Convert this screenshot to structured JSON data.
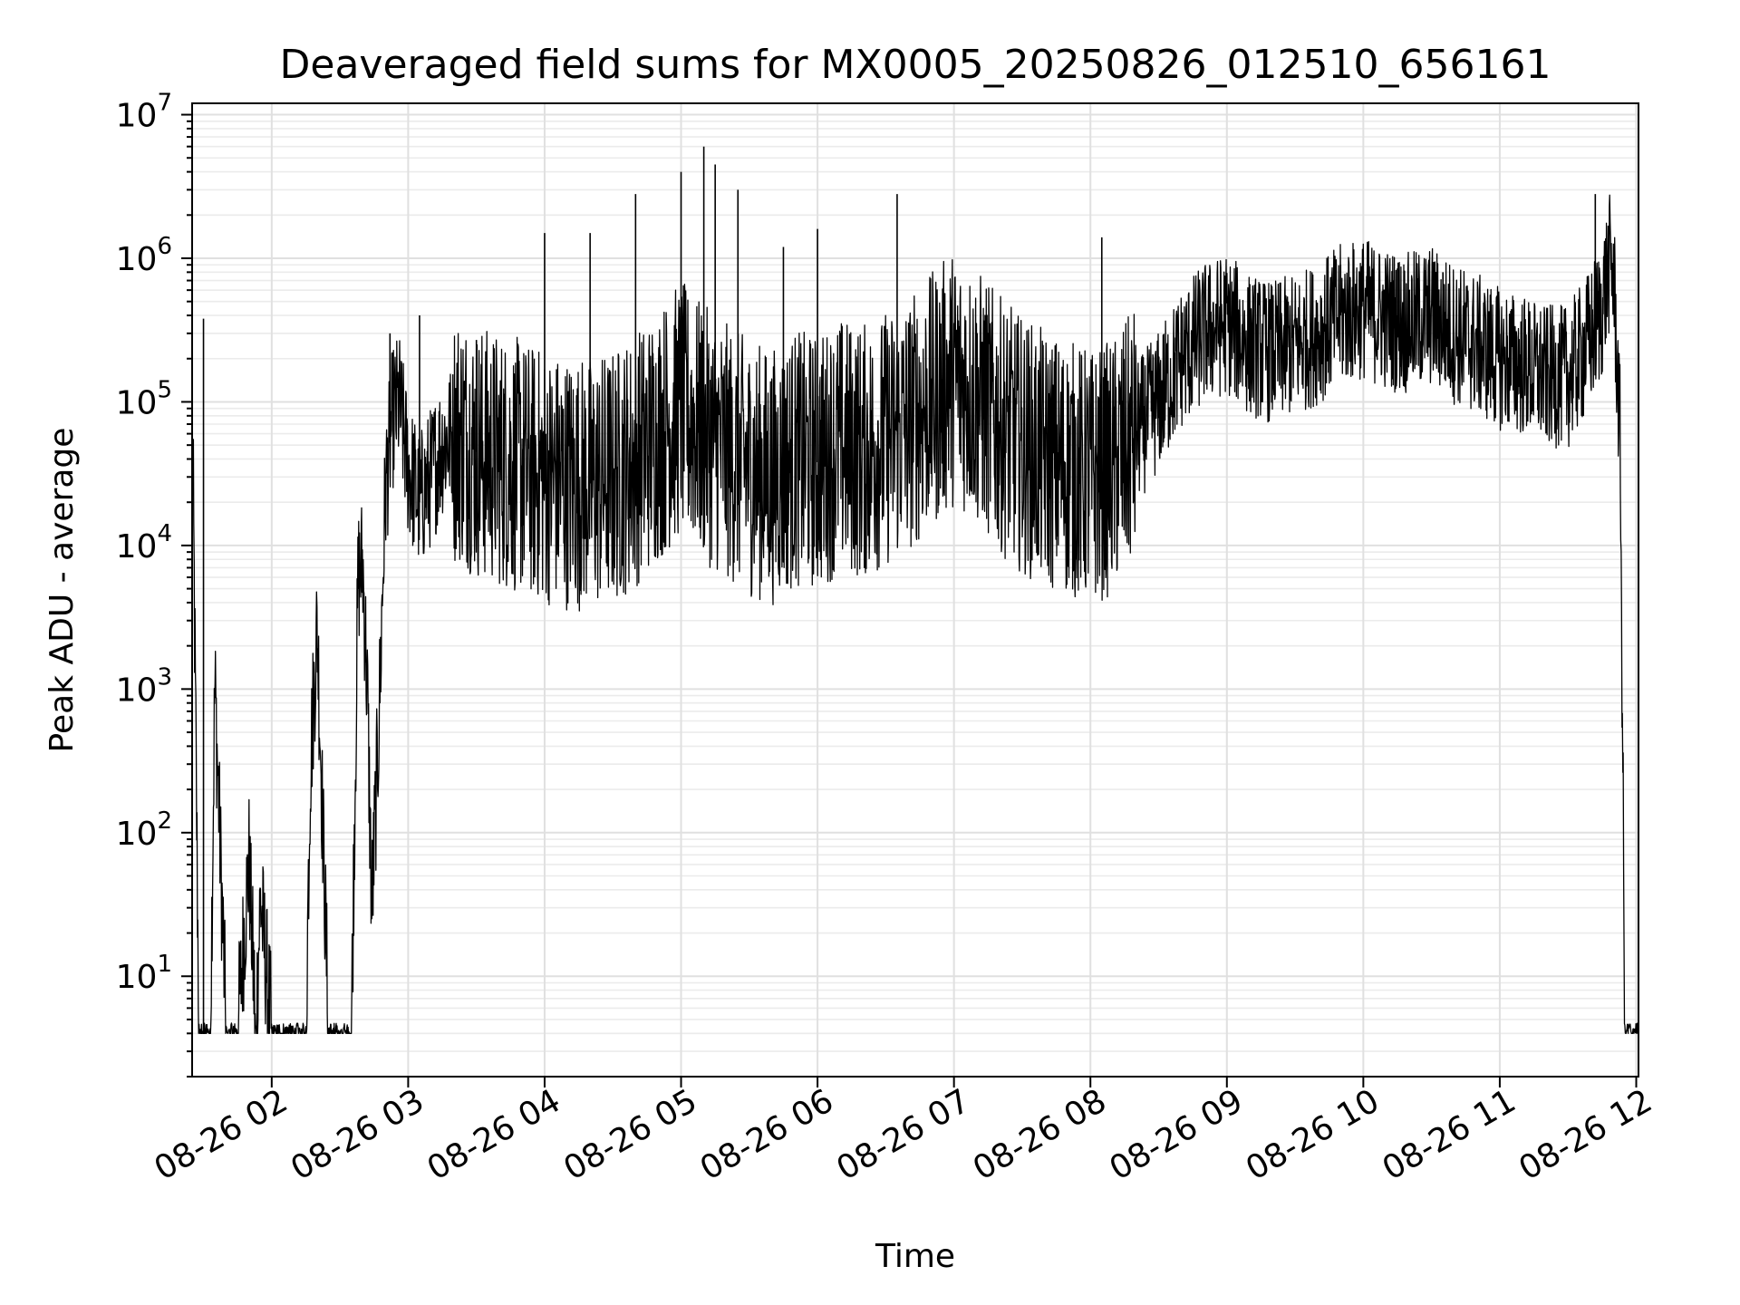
{
  "chart_data": {
    "type": "line",
    "title": "Deaveraged field sums for MX0005_20250826_012510_656161",
    "xlabel": "Time",
    "ylabel": "Peak ADU - average",
    "yscale": "log",
    "ylim": [
      2,
      12000000
    ],
    "xlim": [
      "08-26 01:25",
      "08-26 12:01"
    ],
    "grid": true,
    "line_color": "#000000",
    "x_ticks": [
      "08-26 02",
      "08-26 03",
      "08-26 04",
      "08-26 05",
      "08-26 06",
      "08-26 07",
      "08-26 08",
      "08-26 09",
      "08-26 10",
      "08-26 11",
      "08-26 12"
    ],
    "y_ticks": [
      {
        "base": "10",
        "exp": "1",
        "value": 10
      },
      {
        "base": "10",
        "exp": "2",
        "value": 100
      },
      {
        "base": "10",
        "exp": "3",
        "value": 1000
      },
      {
        "base": "10",
        "exp": "4",
        "value": 10000
      },
      {
        "base": "10",
        "exp": "5",
        "value": 100000
      },
      {
        "base": "10",
        "exp": "6",
        "value": 1000000
      },
      {
        "base": "10",
        "exp": "7",
        "value": 10000000
      }
    ],
    "series": [
      {
        "x": [
          "08-26 01:25",
          "08-26 01:28",
          "08-26 01:30",
          "08-26 01:33",
          "08-26 01:35",
          "08-26 01:40",
          "08-26 01:45",
          "08-26 01:50",
          "08-26 01:53",
          "08-26 01:55",
          "08-26 02:00",
          "08-26 02:05",
          "08-26 02:10",
          "08-26 02:15",
          "08-26 02:17",
          "08-26 02:20",
          "08-26 02:25",
          "08-26 02:30",
          "08-26 02:35",
          "08-26 02:38",
          "08-26 02:40",
          "08-26 02:42",
          "08-26 02:44",
          "08-26 02:47",
          "08-26 02:50",
          "08-26 02:53",
          "08-26 02:56",
          "08-26 03:00",
          "08-26 03:05",
          "08-26 03:10",
          "08-26 03:15",
          "08-26 03:20",
          "08-26 03:25",
          "08-26 03:30",
          "08-26 03:40",
          "08-26 03:50",
          "08-26 04:00",
          "08-26 04:10",
          "08-26 04:20",
          "08-26 04:30",
          "08-26 04:40",
          "08-26 04:50",
          "08-26 05:00",
          "08-26 05:10",
          "08-26 05:20",
          "08-26 05:30",
          "08-26 05:40",
          "08-26 05:50",
          "08-26 06:00",
          "08-26 06:10",
          "08-26 06:20",
          "08-26 06:30",
          "08-26 06:40",
          "08-26 06:50",
          "08-26 07:00",
          "08-26 07:10",
          "08-26 07:20",
          "08-26 07:30",
          "08-26 07:40",
          "08-26 07:50",
          "08-26 08:00",
          "08-26 08:10",
          "08-26 08:20",
          "08-26 08:30",
          "08-26 08:40",
          "08-26 08:50",
          "08-26 09:00",
          "08-26 09:10",
          "08-26 09:20",
          "08-26 09:30",
          "08-26 09:40",
          "08-26 09:50",
          "08-26 10:00",
          "08-26 10:10",
          "08-26 10:20",
          "08-26 10:30",
          "08-26 10:40",
          "08-26 10:50",
          "08-26 11:00",
          "08-26 11:10",
          "08-26 11:20",
          "08-26 11:30",
          "08-26 11:35",
          "08-26 11:40",
          "08-26 11:45",
          "08-26 11:48",
          "08-26 11:50",
          "08-26 11:53",
          "08-26 11:55",
          "08-26 12:00"
        ],
        "y": [
          110000,
          4,
          4,
          4,
          1100,
          4,
          4,
          65,
          4,
          35,
          4,
          4,
          4,
          4,
          300,
          2800,
          4,
          4,
          4,
          6000,
          7500,
          1000,
          30,
          500,
          25000,
          75000,
          100000,
          35000,
          20000,
          30000,
          50000,
          60000,
          55000,
          45000,
          40000,
          35000,
          30000,
          28000,
          27000,
          30000,
          40000,
          60000,
          90000,
          60000,
          45000,
          35000,
          30000,
          40000,
          38000,
          50000,
          45000,
          55000,
          70000,
          100000,
          150000,
          110000,
          70000,
          50000,
          40000,
          35000,
          30000,
          35000,
          60000,
          100000,
          200000,
          300000,
          350000,
          250000,
          220000,
          250000,
          300000,
          400000,
          450000,
          380000,
          350000,
          400000,
          300000,
          250000,
          200000,
          180000,
          150000,
          150000,
          200000,
          280000,
          450000,
          900000,
          800000,
          50000,
          4,
          4
        ]
      }
    ],
    "spikes": [
      {
        "x": "08-26 01:30",
        "y": 380000
      },
      {
        "x": "08-26 02:52",
        "y": 300000
      },
      {
        "x": "08-26 03:05",
        "y": 400000
      },
      {
        "x": "08-26 03:30",
        "y": 270000
      },
      {
        "x": "08-26 04:00",
        "y": 1500000
      },
      {
        "x": "08-26 04:20",
        "y": 1500000
      },
      {
        "x": "08-26 04:40",
        "y": 2800000
      },
      {
        "x": "08-26 05:00",
        "y": 4000000
      },
      {
        "x": "08-26 05:10",
        "y": 6000000
      },
      {
        "x": "08-26 05:15",
        "y": 4500000
      },
      {
        "x": "08-26 05:25",
        "y": 3000000
      },
      {
        "x": "08-26 05:45",
        "y": 1200000
      },
      {
        "x": "08-26 06:00",
        "y": 1600000
      },
      {
        "x": "08-26 06:35",
        "y": 2800000
      },
      {
        "x": "08-26 08:05",
        "y": 1400000
      },
      {
        "x": "08-26 09:50",
        "y": 900000
      },
      {
        "x": "08-26 10:15",
        "y": 850000
      },
      {
        "x": "08-26 10:35",
        "y": 800000
      },
      {
        "x": "08-26 11:42",
        "y": 2800000
      }
    ]
  }
}
